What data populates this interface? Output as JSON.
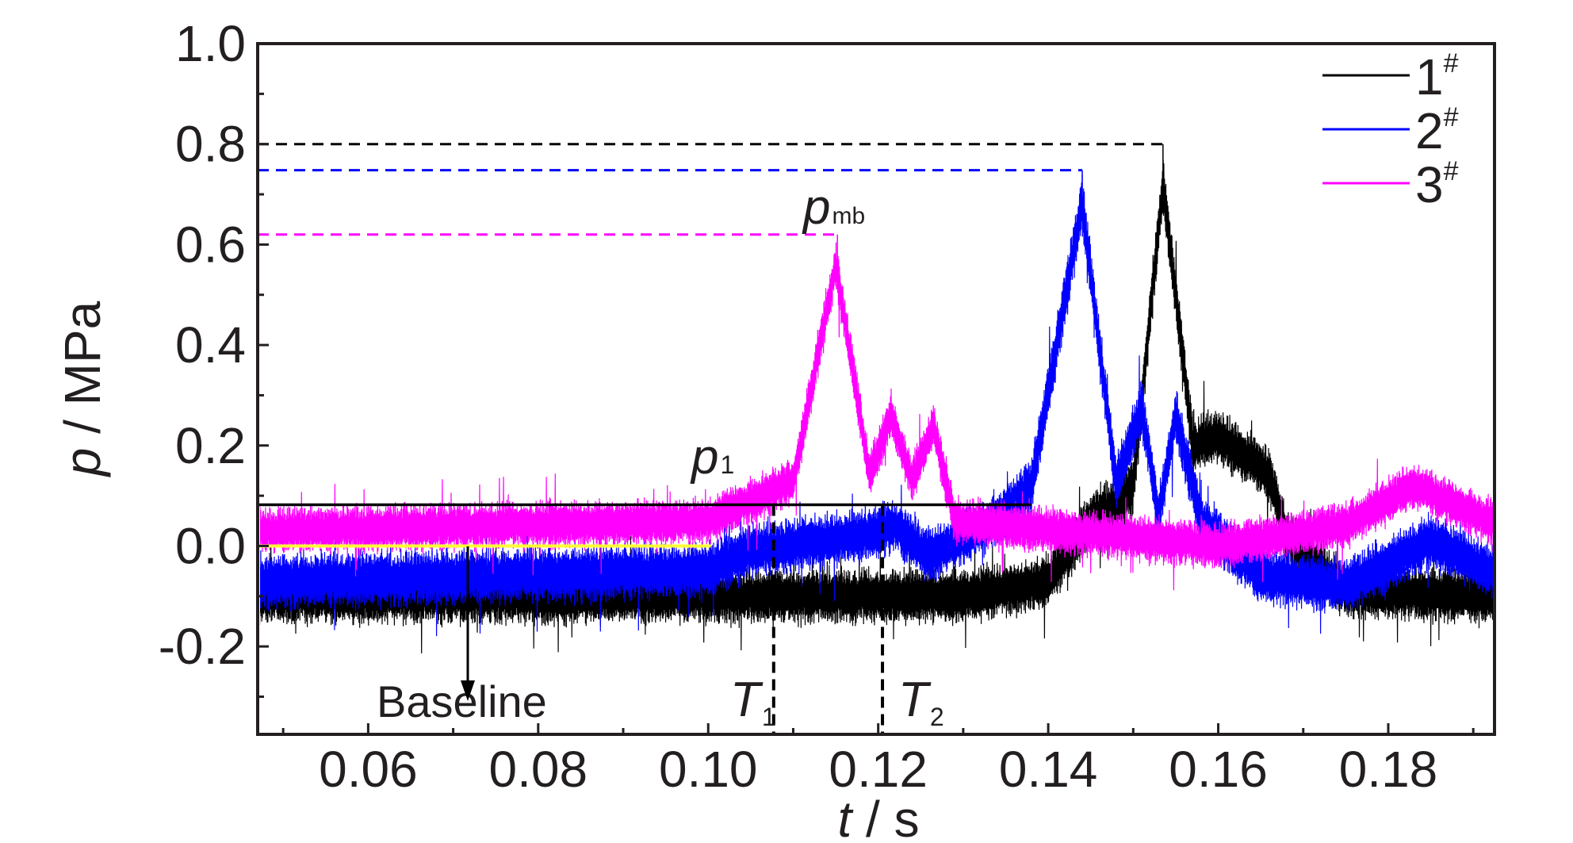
{
  "chart_data": {
    "type": "line",
    "x_label_var": "t",
    "x_label_unit": " / s",
    "y_label_var": "p",
    "y_label_unit": " / MPa",
    "xlim": [
      0.047,
      0.1925
    ],
    "ylim": [
      -0.375,
      1.0
    ],
    "x_ticks": [
      0.06,
      0.08,
      0.1,
      0.12,
      0.14,
      0.16,
      0.18
    ],
    "x_tick_labels": [
      "0.06",
      "0.08",
      "0.10",
      "0.12",
      "0.14",
      "0.16",
      "0.18"
    ],
    "y_ticks": [
      -0.2,
      0.0,
      0.2,
      0.4,
      0.6,
      0.8,
      1.0
    ],
    "y_tick_labels": [
      "-0.2",
      "0.0",
      "0.2",
      "0.4",
      "0.6",
      "0.8",
      "1.0"
    ],
    "grid": false,
    "legend_position": "top-right",
    "series": [
      {
        "name": "1",
        "name_sup": "#",
        "color": "#000000",
        "noise_amplitude": 0.065,
        "envelope": [
          [
            0.047,
            -0.1
          ],
          [
            0.13,
            -0.1
          ],
          [
            0.14,
            -0.07
          ],
          [
            0.1455,
            0.06
          ],
          [
            0.148,
            0.08
          ],
          [
            0.15,
            0.12
          ],
          [
            0.1535,
            0.72
          ],
          [
            0.157,
            0.2
          ],
          [
            0.16,
            0.22
          ],
          [
            0.166,
            0.14
          ],
          [
            0.168,
            0.02
          ],
          [
            0.175,
            -0.09
          ],
          [
            0.192,
            -0.1
          ]
        ],
        "peak": {
          "x": 0.1535,
          "y": 0.8
        }
      },
      {
        "name": "2",
        "name_sup": "#",
        "color": "#0000ff",
        "noise_amplitude": 0.065,
        "envelope": [
          [
            0.047,
            -0.07
          ],
          [
            0.1,
            -0.05
          ],
          [
            0.105,
            -0.01
          ],
          [
            0.118,
            0.02
          ],
          [
            0.122,
            0.04
          ],
          [
            0.126,
            -0.02
          ],
          [
            0.133,
            0.04
          ],
          [
            0.138,
            0.12
          ],
          [
            0.144,
            0.68
          ],
          [
            0.148,
            0.12
          ],
          [
            0.151,
            0.28
          ],
          [
            0.153,
            0.06
          ],
          [
            0.155,
            0.26
          ],
          [
            0.158,
            0.05
          ],
          [
            0.165,
            -0.06
          ],
          [
            0.175,
            -0.08
          ],
          [
            0.185,
            0.01
          ],
          [
            0.192,
            -0.05
          ]
        ],
        "peak": {
          "x": 0.144,
          "y": 0.748
        }
      },
      {
        "name": "3",
        "name_sup": "#",
        "color": "#ff00ff",
        "noise_amplitude": 0.055,
        "envelope": [
          [
            0.047,
            0.03
          ],
          [
            0.1,
            0.05
          ],
          [
            0.11,
            0.13
          ],
          [
            0.115,
            0.56
          ],
          [
            0.119,
            0.14
          ],
          [
            0.1215,
            0.26
          ],
          [
            0.124,
            0.13
          ],
          [
            0.1265,
            0.24
          ],
          [
            0.129,
            0.05
          ],
          [
            0.16,
            0.0
          ],
          [
            0.175,
            0.04
          ],
          [
            0.183,
            0.12
          ],
          [
            0.192,
            0.05
          ]
        ],
        "peak": {
          "x": 0.1152,
          "y": 0.62
        }
      }
    ],
    "reference_lines": {
      "pmb_levels": [
        {
          "y": 0.8,
          "x_end": 0.1535,
          "color": "#000000"
        },
        {
          "y": 0.748,
          "x_end": 0.144,
          "color": "#0000ff"
        },
        {
          "y": 0.62,
          "x_end": 0.1152,
          "color": "#ff00ff"
        }
      ],
      "p1": {
        "y": 0.082,
        "x_start": 0.047,
        "x_end": 0.138
      },
      "baseline": {
        "y": 0.0,
        "x_start": 0.047,
        "x_end": 0.1003,
        "color": "#ffff33"
      },
      "T1": {
        "x": 0.1077,
        "y_top": 0.082,
        "y_bottom": -0.375
      },
      "T2": {
        "x": 0.1205,
        "y_top": 0.082,
        "y_bottom": -0.375
      }
    },
    "annotations": {
      "pmb_main": "p",
      "pmb_sub": "mb",
      "p1_main": "p",
      "p1_sub": "1",
      "baseline": "Baseline",
      "T1_main": "T",
      "T1_sub": "1",
      "T2_main": "T",
      "T2_sub": "2"
    }
  }
}
